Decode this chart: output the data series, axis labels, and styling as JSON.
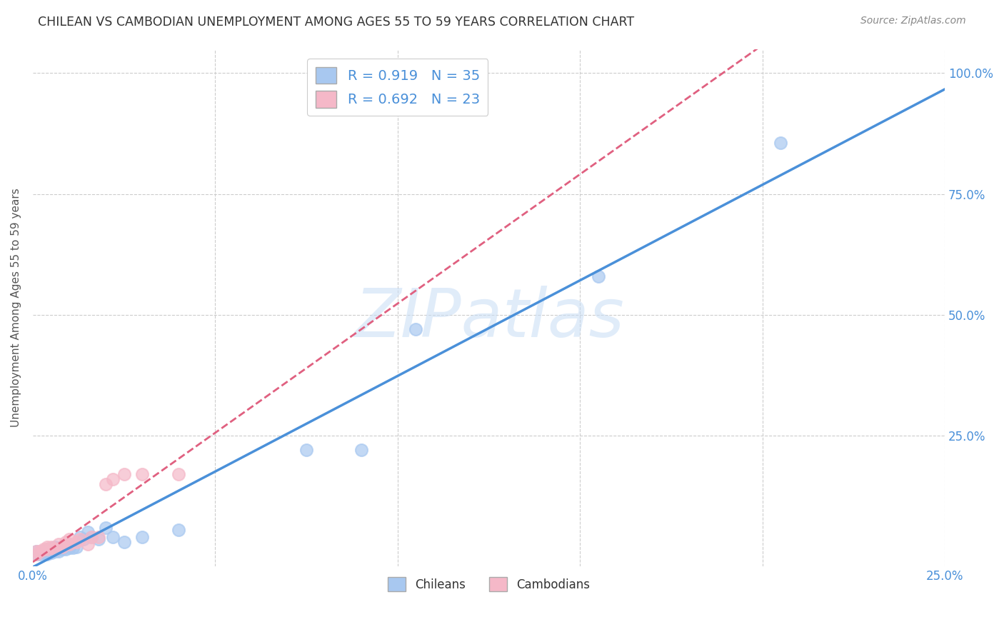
{
  "title": "CHILEAN VS CAMBODIAN UNEMPLOYMENT AMONG AGES 55 TO 59 YEARS CORRELATION CHART",
  "source": "Source: ZipAtlas.com",
  "ylabel": "Unemployment Among Ages 55 to 59 years",
  "xlim": [
    0.0,
    0.25
  ],
  "ylim": [
    -0.02,
    1.05
  ],
  "xticks": [
    0.0,
    0.05,
    0.1,
    0.15,
    0.2,
    0.25
  ],
  "yticks": [
    0.0,
    0.25,
    0.5,
    0.75,
    1.0
  ],
  "right_ytick_labels": [
    "",
    "25.0%",
    "50.0%",
    "75.0%",
    "100.0%"
  ],
  "xtick_labels": [
    "0.0%",
    "",
    "",
    "",
    "",
    "25.0%"
  ],
  "chilean_R": "0.919",
  "chilean_N": "35",
  "cambodian_R": "0.692",
  "cambodian_N": "23",
  "chilean_color": "#a8c8f0",
  "cambodian_color": "#f5b8c8",
  "chilean_line_color": "#4a90d9",
  "cambodian_line_color": "#e06080",
  "watermark_text": "ZIPatlas",
  "chilean_x": [
    0.001,
    0.001,
    0.002,
    0.003,
    0.003,
    0.004,
    0.004,
    0.005,
    0.005,
    0.006,
    0.006,
    0.007,
    0.007,
    0.008,
    0.008,
    0.009,
    0.01,
    0.01,
    0.011,
    0.012,
    0.013,
    0.014,
    0.015,
    0.016,
    0.018,
    0.02,
    0.022,
    0.025,
    0.03,
    0.04,
    0.075,
    0.09,
    0.105,
    0.155,
    0.205
  ],
  "chilean_y": [
    0.005,
    0.01,
    0.005,
    0.008,
    0.012,
    0.005,
    0.015,
    0.008,
    0.015,
    0.01,
    0.02,
    0.01,
    0.018,
    0.015,
    0.02,
    0.015,
    0.018,
    0.025,
    0.018,
    0.02,
    0.04,
    0.035,
    0.05,
    0.04,
    0.035,
    0.06,
    0.04,
    0.03,
    0.04,
    0.055,
    0.22,
    0.22,
    0.47,
    0.58,
    0.855
  ],
  "cambodian_x": [
    0.001,
    0.001,
    0.002,
    0.003,
    0.004,
    0.004,
    0.005,
    0.006,
    0.007,
    0.008,
    0.009,
    0.01,
    0.01,
    0.012,
    0.013,
    0.015,
    0.016,
    0.018,
    0.02,
    0.022,
    0.025,
    0.03,
    0.04
  ],
  "cambodian_y": [
    0.005,
    0.01,
    0.01,
    0.015,
    0.015,
    0.02,
    0.02,
    0.015,
    0.025,
    0.02,
    0.03,
    0.025,
    0.035,
    0.03,
    0.035,
    0.025,
    0.04,
    0.04,
    0.15,
    0.16,
    0.17,
    0.17,
    0.17
  ]
}
